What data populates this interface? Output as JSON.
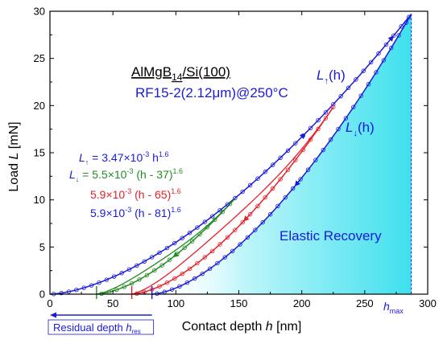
{
  "colors": {
    "blue": "#1a1adc",
    "green": "#228b22",
    "red": "#e8202a",
    "fill": "#4fe3f0",
    "axis": "#000000"
  },
  "chart_data": {
    "type": "line",
    "xlabel_main": "Contact depth",
    "xlabel_var": "h",
    "xlabel_unit": "[nm]",
    "ylabel_main": "Load",
    "ylabel_var": "L",
    "ylabel_unit": "[mN]",
    "xlim": [
      0,
      300
    ],
    "ylim": [
      0,
      30
    ],
    "x_ticks": [
      "0",
      "50",
      "100",
      "150",
      "200",
      "250",
      "300"
    ],
    "y_ticks": [
      "0",
      "5",
      "10",
      "15",
      "20",
      "25",
      "30"
    ],
    "title_main": "AlMgB",
    "title_sub": "14",
    "title_rest": "/Si(100)",
    "subtitle_a": "RF15-2(2.12",
    "subtitle_mu": "μ",
    "subtitle_b": "m)@250°C",
    "label_load_up": {
      "base": "L",
      "arrow": "↑",
      "arg": "(h)"
    },
    "label_load_down": {
      "base": "L",
      "arrow": "↓",
      "arg": "(h)"
    },
    "elastic_label": "Elastic Recovery",
    "hmax_label": {
      "base": "h",
      "sub": "max"
    },
    "residual_label": {
      "text": "Residual depth ",
      "base": "h",
      "sub": "res"
    },
    "equations": {
      "eq1": {
        "L": "L",
        "arrow": "↑",
        "mid": " = 3.47×10",
        "exp": "-3",
        "var": " h",
        "pow": "1.6"
      },
      "eq2": {
        "L": "L",
        "arrow": "↓",
        "mid": " = 5.5×10",
        "exp": "-3",
        "tail": " (h - 37)",
        "pow": "1.6"
      },
      "eq3": {
        "mid": "5.9×10",
        "exp": "-3",
        "tail": " (h - 65)",
        "pow": "1.6"
      },
      "eq4": {
        "mid": "5.9×10",
        "exp": "-3",
        "tail": " (h - 81)",
        "pow": "1.6"
      }
    },
    "loading": {
      "coef": 0.00347,
      "exp": 1.6,
      "h_max": 287,
      "L_max": 29.7
    },
    "series": [
      {
        "color": "green",
        "unload_coef": 0.0055,
        "unload_offset": 37,
        "turn_h": 147,
        "turn_L": 10.0
      },
      {
        "color": "red",
        "unload_coef": 0.0059,
        "unload_offset": 65,
        "turn_h": 226,
        "turn_L": 20.0
      },
      {
        "color": "blue",
        "unload_coef": 0.0059,
        "unload_offset": 81,
        "turn_h": 287,
        "turn_L": 29.7
      }
    ],
    "residual_marks": [
      37,
      65,
      81
    ]
  }
}
